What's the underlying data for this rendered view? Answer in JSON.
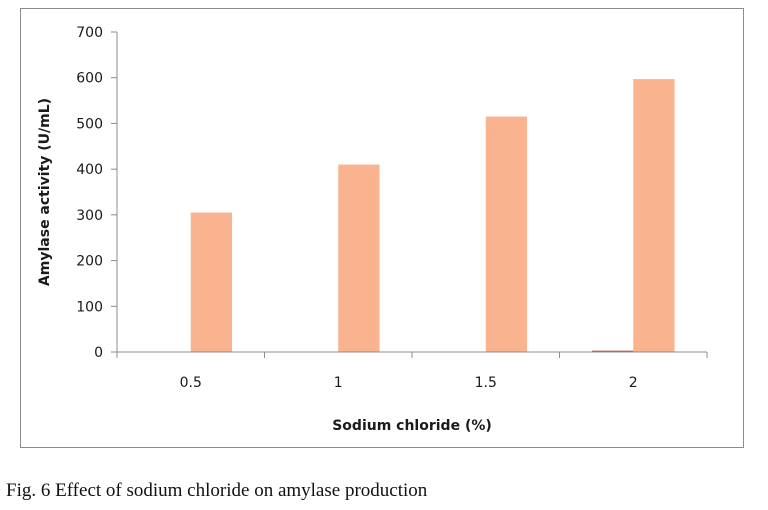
{
  "chart_data": {
    "type": "bar",
    "categories": [
      "0.5",
      "1",
      "1.5",
      "2"
    ],
    "series": [
      {
        "values": [
          0,
          0,
          0,
          3
        ]
      },
      {
        "values": [
          305,
          410,
          515,
          597
        ]
      }
    ],
    "xlabel": "Sodium chloride (%)",
    "ylabel": "Amylase activity (U/mL)",
    "ylim": [
      0,
      700
    ],
    "yticks": [
      "0",
      "100",
      "200",
      "300",
      "400",
      "500",
      "600",
      "700"
    ],
    "grid": false,
    "legend": "none"
  },
  "colors": {
    "series": [
      "#c0504d",
      "#f9b48f"
    ],
    "axis": "#8c8c8c"
  },
  "caption": "Fig. 6 Effect of sodium chloride on amylase production"
}
